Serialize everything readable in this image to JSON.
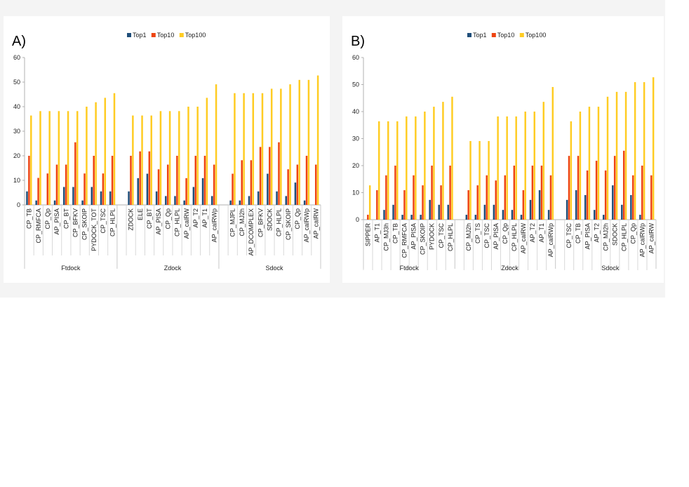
{
  "colors": {
    "Top1": "#1f4e79",
    "Top10": "#ee4411",
    "Top100": "#ffcc22"
  },
  "chart_data": [
    {
      "type": "bar",
      "panel_label": "A)",
      "series_names": [
        "Top1",
        "Top10",
        "Top100"
      ],
      "ylim": [
        0,
        60
      ],
      "yticks": [
        0,
        10,
        20,
        30,
        40,
        50,
        60
      ],
      "groups": [
        {
          "name": "Ftdock",
          "categories": [
            "CP_TB",
            "CP_RMFCA",
            "CP_Qp",
            "AP_PISA",
            "CP_BT",
            "CP_BFKV",
            "CP_SKOIP",
            "PYDOCK_TOT",
            "CP_TSC",
            "CP_HLPL"
          ],
          "top1": [
            5.5,
            1.8,
            0,
            1.8,
            7.3,
            7.3,
            1.8,
            7.3,
            5.5,
            5.5
          ],
          "top10": [
            20,
            11,
            12.8,
            16.4,
            16.4,
            25.5,
            12.8,
            20,
            12.8,
            20
          ],
          "top100": [
            36.4,
            38.2,
            38.2,
            38.2,
            38.2,
            38.2,
            40,
            41.8,
            43.6,
            45.5
          ]
        },
        {
          "name": "Zdock",
          "categories": [
            "ZDOCK",
            "ELE",
            "CP_BT",
            "AP_PISA",
            "CP_Qp",
            "CP_HLPL",
            "AP_calRW",
            "AP_T2",
            "AP_T1",
            "AP_calRWp"
          ],
          "top1": [
            5.5,
            10.9,
            12.7,
            5.5,
            3.6,
            3.6,
            1.8,
            7.3,
            10.9,
            3.6
          ],
          "top10": [
            20,
            21.8,
            21.8,
            14.5,
            16.4,
            20,
            10.9,
            20,
            20,
            16.4
          ],
          "top100": [
            36.4,
            36.4,
            36.4,
            38.2,
            38.2,
            38.2,
            40,
            40,
            43.6,
            49.1
          ]
        },
        {
          "name": "Sdock",
          "categories": [
            "CP_MJPL",
            "CP_MJ2h",
            "AP_DCOMPLEX",
            "CP_BFKV",
            "SDOCK",
            "CP_HLPL",
            "CP_SKOIP",
            "CP_Qp",
            "AP_calRWp",
            "AP_calRW"
          ],
          "top1": [
            1.8,
            1.8,
            3.6,
            5.5,
            12.7,
            5.5,
            3.6,
            9.1,
            1.8,
            0
          ],
          "top10": [
            12.7,
            18.2,
            18.2,
            23.6,
            23.6,
            25.5,
            14.5,
            16.4,
            20,
            16.4
          ],
          "top100": [
            45.5,
            45.5,
            45.5,
            45.5,
            47.3,
            47.3,
            49.1,
            50.9,
            50.9,
            52.7
          ]
        }
      ]
    },
    {
      "type": "bar",
      "panel_label": "B)",
      "series_names": [
        "Top1",
        "Top10",
        "Top100"
      ],
      "ylim": [
        0,
        60
      ],
      "yticks": [
        0,
        10,
        20,
        30,
        40,
        50,
        60
      ],
      "groups": [
        {
          "name": "Ftdock",
          "categories": [
            "SIPPER",
            "AP_T1",
            "CP_MJ3h",
            "CP_TB",
            "CP_RMFCA",
            "AP_PISA",
            "CP_SKOIP",
            "PYDOCK",
            "CP_TSC",
            "CP_HLPL"
          ],
          "top1": [
            0,
            0,
            3.6,
            5.5,
            1.8,
            1.8,
            1.8,
            7.3,
            5.5,
            5.5
          ],
          "top10": [
            1.8,
            10.9,
            16.4,
            20,
            10.9,
            16.4,
            12.7,
            20,
            12.7,
            20
          ],
          "top100": [
            12.7,
            36.4,
            36.4,
            36.4,
            38.2,
            38.2,
            40,
            41.8,
            43.6,
            45.5
          ]
        },
        {
          "name": "Zdock",
          "categories": [
            "CP_MJ2h",
            "CP_TS",
            "CP_TSC",
            "AP_PISA",
            "CP_Qp",
            "CP_HLPL",
            "AP_calRW",
            "AP_T2",
            "AP_T1",
            "AP_calRWp"
          ],
          "top1": [
            1.8,
            1.8,
            5.5,
            5.5,
            3.6,
            3.6,
            1.8,
            7.3,
            10.9,
            3.6
          ],
          "top10": [
            10.9,
            12.7,
            16.4,
            14.5,
            16.4,
            20,
            10.9,
            20,
            20,
            16.4
          ],
          "top100": [
            29.1,
            29.1,
            29.1,
            38.2,
            38.2,
            38.2,
            40,
            40,
            43.6,
            49.1
          ]
        },
        {
          "name": "Sdock",
          "categories": [
            "CP_TSC",
            "CP_TB",
            "AP_PISA",
            "AP_T2",
            "CP_MJ2h",
            "SDOCK",
            "CP_HLPL",
            "CP_Qp",
            "AP_calRWp",
            "AP_calRW"
          ],
          "top1": [
            7.3,
            10.9,
            9.1,
            3.6,
            1.8,
            12.7,
            5.5,
            9.1,
            1.8,
            0
          ],
          "top10": [
            23.6,
            23.6,
            18.2,
            21.8,
            18.2,
            23.6,
            25.5,
            16.4,
            20,
            16.4
          ],
          "top100": [
            36.4,
            40,
            41.8,
            41.8,
            45.5,
            47.3,
            47.3,
            50.9,
            50.9,
            52.7
          ]
        }
      ]
    }
  ]
}
